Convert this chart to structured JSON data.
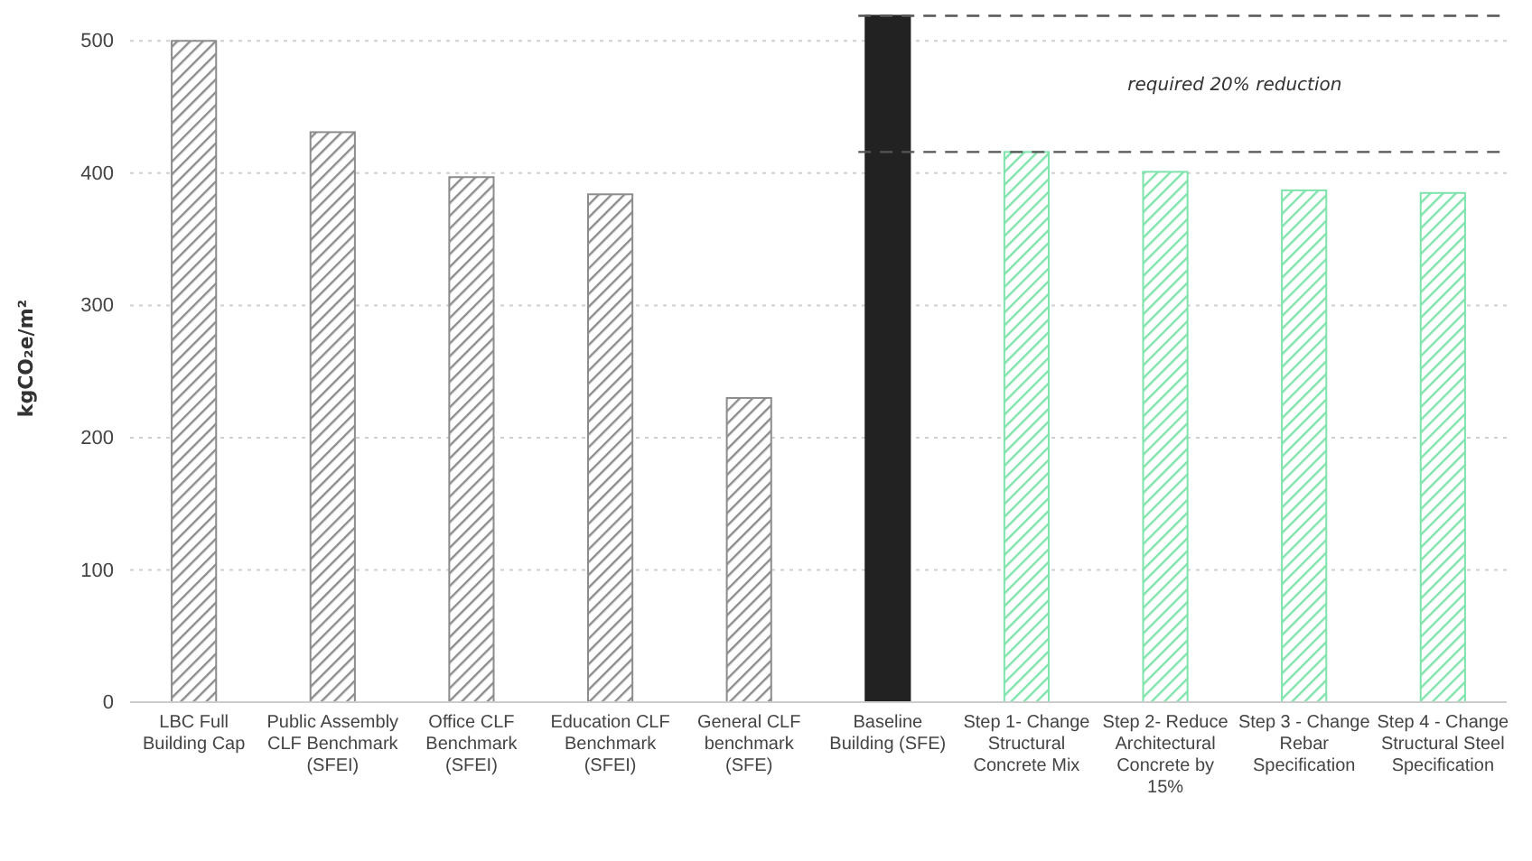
{
  "chart_data": {
    "type": "bar",
    "ylabel": "kgCO₂e/m²",
    "categories": [
      "LBC Full Building Cap",
      "Public Assembly CLF Benchmark (SFEI)",
      "Office CLF Benchmark (SFEI)",
      "Education CLF Benchmark (SFEI)",
      "General CLF benchmark (SFE)",
      "Baseline Building (SFE)",
      "Step 1- Change Structural Concrete Mix",
      "Step 2- Reduce Architectural Concrete by 15%",
      "Step 3 - Change Rebar Specification",
      "Step 4 - Change Structural Steel Specification"
    ],
    "values": [
      500,
      431,
      397,
      384,
      230,
      519,
      416,
      401,
      387,
      385
    ],
    "colors": [
      "#8c8c8c",
      "#8c8c8c",
      "#8c8c8c",
      "#8c8c8c",
      "#8c8c8c",
      "#222222",
      "#7fe3ac",
      "#7fe3ac",
      "#7fe3ac",
      "#7fe3ac"
    ],
    "ylim": [
      0,
      520
    ],
    "yticks": [
      0,
      100,
      200,
      300,
      400,
      500
    ],
    "grid": "y",
    "ref_lines": [
      {
        "axis": "y",
        "value": 519,
        "color": "#555555",
        "line_style": "dashed"
      },
      {
        "axis": "y",
        "value": 416,
        "color": "#555555",
        "line_style": "dashed"
      }
    ],
    "annotations": [
      "required 20% reduction"
    ]
  }
}
